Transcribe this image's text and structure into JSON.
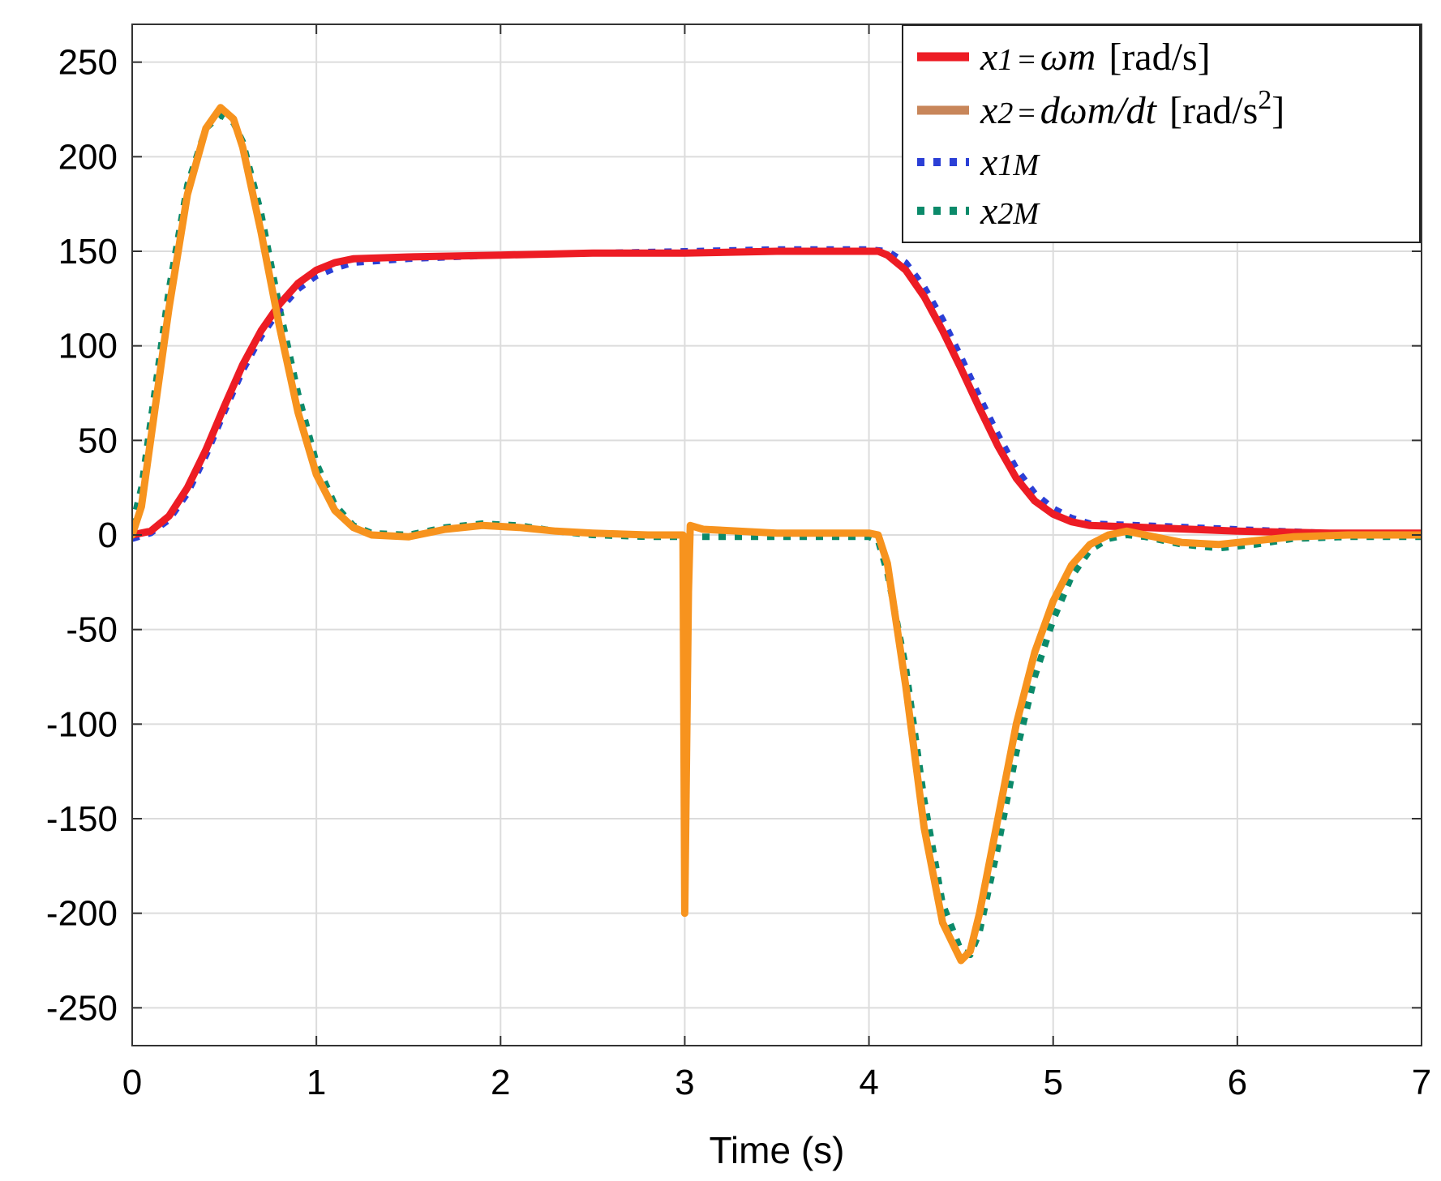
{
  "chart_data": {
    "type": "line",
    "xlabel": "Time (s)",
    "ylabel": "",
    "xlim": [
      0,
      7
    ],
    "ylim": [
      -270,
      270
    ],
    "xticks": [
      0,
      1,
      2,
      3,
      4,
      5,
      6,
      7
    ],
    "xtick_labels": [
      "0",
      "1",
      "2",
      "3",
      "4",
      "5",
      "6",
      "7"
    ],
    "yticks": [
      250,
      200,
      150,
      100,
      50,
      0,
      -50,
      -100,
      -150,
      -200,
      -250
    ],
    "ytick_labels": [
      "250",
      "200",
      "150",
      "100",
      "50",
      "0",
      "-50",
      "-100",
      "-150",
      "-200",
      "-250"
    ],
    "grid": true,
    "legend_position": "top-right",
    "series": [
      {
        "name": "x1 = ωm [rad/s]",
        "legend": {
          "var": "x",
          "sub": "1",
          "rest": "ωm",
          "unit": "[rad/s]"
        },
        "color": "#ed1c24",
        "style": "solid",
        "points": [
          [
            0,
            0
          ],
          [
            0.1,
            2
          ],
          [
            0.2,
            10
          ],
          [
            0.3,
            25
          ],
          [
            0.4,
            45
          ],
          [
            0.5,
            68
          ],
          [
            0.6,
            90
          ],
          [
            0.7,
            108
          ],
          [
            0.8,
            122
          ],
          [
            0.9,
            133
          ],
          [
            1.0,
            140
          ],
          [
            1.1,
            144
          ],
          [
            1.2,
            146
          ],
          [
            1.5,
            147
          ],
          [
            2.0,
            148
          ],
          [
            2.5,
            149
          ],
          [
            3.0,
            149
          ],
          [
            3.5,
            150
          ],
          [
            4.0,
            150
          ],
          [
            4.05,
            150
          ],
          [
            4.1,
            148
          ],
          [
            4.2,
            140
          ],
          [
            4.3,
            126
          ],
          [
            4.4,
            108
          ],
          [
            4.5,
            88
          ],
          [
            4.6,
            67
          ],
          [
            4.7,
            47
          ],
          [
            4.8,
            30
          ],
          [
            4.9,
            18
          ],
          [
            5.0,
            11
          ],
          [
            5.1,
            7
          ],
          [
            5.2,
            5
          ],
          [
            5.5,
            4
          ],
          [
            6.0,
            2
          ],
          [
            6.5,
            1
          ],
          [
            7.0,
            1
          ]
        ]
      },
      {
        "name": "x2 = dωm/dt [rad/s2]",
        "legend": {
          "var": "x",
          "sub": "2",
          "rest": "dωm/dt",
          "unit": "[rad/s",
          "sup": "2",
          "unit_end": "]"
        },
        "color": "#f7931e",
        "style": "solid",
        "points": [
          [
            0,
            0
          ],
          [
            0.05,
            15
          ],
          [
            0.1,
            50
          ],
          [
            0.2,
            120
          ],
          [
            0.3,
            180
          ],
          [
            0.4,
            215
          ],
          [
            0.48,
            226
          ],
          [
            0.55,
            220
          ],
          [
            0.6,
            205
          ],
          [
            0.7,
            160
          ],
          [
            0.8,
            110
          ],
          [
            0.9,
            65
          ],
          [
            1.0,
            32
          ],
          [
            1.1,
            13
          ],
          [
            1.2,
            4
          ],
          [
            1.3,
            0
          ],
          [
            1.5,
            -1
          ],
          [
            1.7,
            3
          ],
          [
            1.9,
            5
          ],
          [
            2.1,
            4
          ],
          [
            2.3,
            2
          ],
          [
            2.5,
            1
          ],
          [
            2.8,
            0
          ],
          [
            2.99,
            0
          ],
          [
            3.0,
            -200
          ],
          [
            3.02,
            -30
          ],
          [
            3.03,
            5
          ],
          [
            3.1,
            3
          ],
          [
            3.5,
            1
          ],
          [
            4.0,
            1
          ],
          [
            4.05,
            0
          ],
          [
            4.1,
            -15
          ],
          [
            4.2,
            -80
          ],
          [
            4.3,
            -155
          ],
          [
            4.4,
            -205
          ],
          [
            4.5,
            -225
          ],
          [
            4.55,
            -220
          ],
          [
            4.6,
            -200
          ],
          [
            4.7,
            -150
          ],
          [
            4.8,
            -100
          ],
          [
            4.9,
            -62
          ],
          [
            5.0,
            -35
          ],
          [
            5.1,
            -16
          ],
          [
            5.2,
            -5
          ],
          [
            5.3,
            0
          ],
          [
            5.4,
            2
          ],
          [
            5.5,
            0
          ],
          [
            5.7,
            -4
          ],
          [
            5.9,
            -5
          ],
          [
            6.1,
            -3
          ],
          [
            6.3,
            -1
          ],
          [
            6.6,
            0
          ],
          [
            7.0,
            0
          ]
        ]
      },
      {
        "name": "x1M",
        "legend": {
          "var": "x",
          "sub": "1M"
        },
        "color": "#2b3fd6",
        "style": "dotted",
        "points": [
          [
            0,
            -2
          ],
          [
            0.1,
            1
          ],
          [
            0.2,
            8
          ],
          [
            0.3,
            22
          ],
          [
            0.4,
            42
          ],
          [
            0.5,
            65
          ],
          [
            0.6,
            87
          ],
          [
            0.7,
            105
          ],
          [
            0.8,
            119
          ],
          [
            0.9,
            130
          ],
          [
            1.0,
            137
          ],
          [
            1.1,
            141
          ],
          [
            1.2,
            144
          ],
          [
            1.5,
            146
          ],
          [
            2.0,
            148
          ],
          [
            2.5,
            149
          ],
          [
            3.0,
            150
          ],
          [
            3.5,
            151
          ],
          [
            4.0,
            151
          ],
          [
            4.1,
            150
          ],
          [
            4.2,
            144
          ],
          [
            4.3,
            131
          ],
          [
            4.4,
            114
          ],
          [
            4.5,
            94
          ],
          [
            4.6,
            73
          ],
          [
            4.7,
            53
          ],
          [
            4.8,
            35
          ],
          [
            4.9,
            22
          ],
          [
            5.0,
            14
          ],
          [
            5.1,
            9
          ],
          [
            5.2,
            6
          ],
          [
            5.5,
            5
          ],
          [
            6.0,
            3
          ],
          [
            6.5,
            1
          ],
          [
            7.0,
            1
          ]
        ]
      },
      {
        "name": "x2M",
        "legend": {
          "var": "x",
          "sub": "2M"
        },
        "color": "#0b8a6a",
        "style": "dotted",
        "points": [
          [
            0,
            5
          ],
          [
            0.05,
            25
          ],
          [
            0.1,
            60
          ],
          [
            0.2,
            130
          ],
          [
            0.3,
            185
          ],
          [
            0.4,
            215
          ],
          [
            0.48,
            222
          ],
          [
            0.55,
            218
          ],
          [
            0.6,
            208
          ],
          [
            0.7,
            170
          ],
          [
            0.8,
            120
          ],
          [
            0.9,
            75
          ],
          [
            1.0,
            38
          ],
          [
            1.1,
            16
          ],
          [
            1.2,
            5
          ],
          [
            1.3,
            1
          ],
          [
            1.5,
            0
          ],
          [
            1.7,
            4
          ],
          [
            1.9,
            6
          ],
          [
            2.1,
            5
          ],
          [
            2.3,
            2
          ],
          [
            2.5,
            0
          ],
          [
            2.8,
            -1
          ],
          [
            3.0,
            -1
          ],
          [
            3.5,
            -1
          ],
          [
            4.0,
            -1
          ],
          [
            4.05,
            -3
          ],
          [
            4.1,
            -20
          ],
          [
            4.2,
            -70
          ],
          [
            4.3,
            -140
          ],
          [
            4.4,
            -195
          ],
          [
            4.5,
            -220
          ],
          [
            4.55,
            -222
          ],
          [
            4.6,
            -210
          ],
          [
            4.7,
            -165
          ],
          [
            4.8,
            -115
          ],
          [
            4.9,
            -75
          ],
          [
            5.0,
            -45
          ],
          [
            5.1,
            -22
          ],
          [
            5.2,
            -8
          ],
          [
            5.3,
            -2
          ],
          [
            5.4,
            0
          ],
          [
            5.5,
            -1
          ],
          [
            5.7,
            -5
          ],
          [
            5.9,
            -7
          ],
          [
            6.1,
            -5
          ],
          [
            6.3,
            -2
          ],
          [
            6.6,
            -1
          ],
          [
            7.0,
            -1
          ]
        ]
      }
    ]
  }
}
